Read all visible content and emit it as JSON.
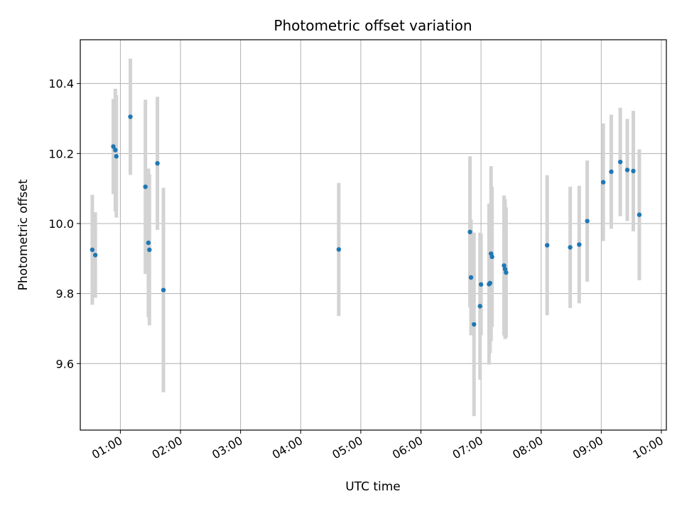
{
  "chart_data": {
    "type": "scatter",
    "title": "Photometric offset variation",
    "xlabel": "UTC time",
    "ylabel": "Photometric offset",
    "x_unit": "UTC hours",
    "xlim": [
      "00:20",
      "10:05"
    ],
    "ylim": [
      9.41,
      10.525
    ],
    "x_ticks": [
      "01:00",
      "02:00",
      "03:00",
      "04:00",
      "05:00",
      "06:00",
      "07:00",
      "08:00",
      "09:00",
      "10:00"
    ],
    "y_ticks": [
      9.6,
      9.8,
      10.0,
      10.2,
      10.4
    ],
    "y_tick_labels": [
      "9.6",
      "9.8",
      "10.0",
      "10.2",
      "10.4"
    ],
    "grid": true,
    "colors": {
      "points": "#1f77b4",
      "errorbars": "#d3d3d3",
      "grid": "#b0b0b0"
    },
    "points": [
      {
        "x": "00:32",
        "y": 9.925,
        "err": 0.157
      },
      {
        "x": "00:35",
        "y": 9.91,
        "err": 0.122
      },
      {
        "x": "00:53",
        "y": 10.22,
        "err": 0.136
      },
      {
        "x": "00:55",
        "y": 10.21,
        "err": 0.175
      },
      {
        "x": "00:56",
        "y": 10.192,
        "err": 0.175
      },
      {
        "x": "01:10",
        "y": 10.305,
        "err": 0.166
      },
      {
        "x": "01:25",
        "y": 10.105,
        "err": 0.249
      },
      {
        "x": "01:28",
        "y": 9.945,
        "err": 0.212
      },
      {
        "x": "01:29",
        "y": 9.925,
        "err": 0.216
      },
      {
        "x": "01:37",
        "y": 10.172,
        "err": 0.19
      },
      {
        "x": "01:43",
        "y": 9.81,
        "err": 0.292
      },
      {
        "x": "04:38",
        "y": 9.926,
        "err": 0.19
      },
      {
        "x": "06:49",
        "y": 9.976,
        "err": 0.216
      },
      {
        "x": "06:50",
        "y": 9.846,
        "err": 0.165
      },
      {
        "x": "06:53",
        "y": 9.712,
        "err": 0.262
      },
      {
        "x": "06:59",
        "y": 9.764,
        "err": 0.21
      },
      {
        "x": "07:00",
        "y": 9.826,
        "err": 0.145
      },
      {
        "x": "07:08",
        "y": 9.827,
        "err": 0.23
      },
      {
        "x": "07:09",
        "y": 9.83,
        "err": 0.2
      },
      {
        "x": "07:10",
        "y": 9.914,
        "err": 0.25
      },
      {
        "x": "07:11",
        "y": 9.905,
        "err": 0.2
      },
      {
        "x": "07:23",
        "y": 9.88,
        "err": 0.2
      },
      {
        "x": "07:24",
        "y": 9.87,
        "err": 0.2
      },
      {
        "x": "07:25",
        "y": 9.86,
        "err": 0.186
      },
      {
        "x": "08:06",
        "y": 9.938,
        "err": 0.2
      },
      {
        "x": "08:29",
        "y": 9.932,
        "err": 0.173
      },
      {
        "x": "08:38",
        "y": 9.94,
        "err": 0.168
      },
      {
        "x": "08:46",
        "y": 10.007,
        "err": 0.173
      },
      {
        "x": "09:02",
        "y": 10.118,
        "err": 0.168
      },
      {
        "x": "09:10",
        "y": 10.148,
        "err": 0.163
      },
      {
        "x": "09:19",
        "y": 10.176,
        "err": 0.155
      },
      {
        "x": "09:26",
        "y": 10.153,
        "err": 0.146
      },
      {
        "x": "09:32",
        "y": 10.15,
        "err": 0.172
      },
      {
        "x": "09:38",
        "y": 10.025,
        "err": 0.187
      }
    ]
  }
}
